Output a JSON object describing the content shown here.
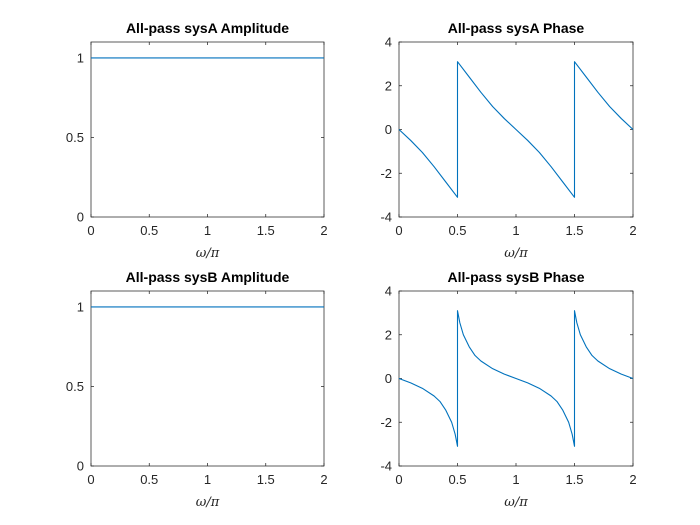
{
  "figure": {
    "line_color": "#0072bd",
    "axis_color": "#262626"
  },
  "chart_data": [
    {
      "type": "line",
      "title": "All-pass sysA Amplitude",
      "xlabel": "ω/π",
      "ylabel": "",
      "xlim": [
        0,
        2
      ],
      "ylim": [
        0,
        1.1
      ],
      "xticks": [
        0,
        0.5,
        1,
        1.5,
        2
      ],
      "xtick_labels": [
        "0",
        "0.5",
        "1",
        "1.5",
        "2"
      ],
      "yticks": [
        0,
        0.5,
        1
      ],
      "ytick_labels": [
        "0",
        "0.5",
        "1"
      ],
      "grid": false,
      "series": [
        {
          "x": [
            0,
            0.5,
            1,
            1.5,
            2
          ],
          "y": [
            1,
            1,
            1,
            1,
            1
          ]
        }
      ]
    },
    {
      "type": "line",
      "title": "All-pass sysA Phase",
      "xlabel": "ω/π",
      "ylabel": "",
      "xlim": [
        0,
        2
      ],
      "ylim": [
        -4,
        4
      ],
      "xticks": [
        0,
        0.5,
        1,
        1.5,
        2
      ],
      "xtick_labels": [
        "0",
        "0.5",
        "1",
        "1.5",
        "2"
      ],
      "yticks": [
        -4,
        -2,
        0,
        2,
        4
      ],
      "ytick_labels": [
        "-4",
        "-2",
        "0",
        "2",
        "4"
      ],
      "grid": false,
      "series": [
        {
          "x": [
            0,
            0.1,
            0.2,
            0.3,
            0.4,
            0.5,
            0.5,
            0.6,
            0.7,
            0.8,
            0.9,
            1.0,
            1.1,
            1.2,
            1.3,
            1.4,
            1.5,
            1.5,
            1.6,
            1.7,
            1.8,
            1.9,
            2.0
          ],
          "y": [
            0,
            -0.5,
            -1.05,
            -1.7,
            -2.4,
            -3.1,
            3.1,
            2.4,
            1.7,
            1.05,
            0.5,
            0,
            -0.5,
            -1.05,
            -1.7,
            -2.4,
            -3.1,
            3.1,
            2.4,
            1.7,
            1.05,
            0.5,
            0
          ]
        }
      ]
    },
    {
      "type": "line",
      "title": "All-pass sysB Amplitude",
      "xlabel": "ω/π",
      "ylabel": "",
      "xlim": [
        0,
        2
      ],
      "ylim": [
        0,
        1.1
      ],
      "xticks": [
        0,
        0.5,
        1,
        1.5,
        2
      ],
      "xtick_labels": [
        "0",
        "0.5",
        "1",
        "1.5",
        "2"
      ],
      "yticks": [
        0,
        0.5,
        1
      ],
      "ytick_labels": [
        "0",
        "0.5",
        "1"
      ],
      "grid": false,
      "series": [
        {
          "x": [
            0,
            0.5,
            1,
            1.5,
            2
          ],
          "y": [
            1,
            1,
            1,
            1,
            1
          ]
        }
      ]
    },
    {
      "type": "line",
      "title": "All-pass sysB Phase",
      "xlabel": "ω/π",
      "ylabel": "",
      "xlim": [
        0,
        2
      ],
      "ylim": [
        -4,
        4
      ],
      "xticks": [
        0,
        0.5,
        1,
        1.5,
        2
      ],
      "xtick_labels": [
        "0",
        "0.5",
        "1",
        "1.5",
        "2"
      ],
      "yticks": [
        -4,
        -2,
        0,
        2,
        4
      ],
      "ytick_labels": [
        "-4",
        "-2",
        "0",
        "2",
        "4"
      ],
      "grid": false,
      "series": [
        {
          "x": [
            0,
            0.1,
            0.2,
            0.3,
            0.35,
            0.4,
            0.45,
            0.48,
            0.5,
            0.5,
            0.52,
            0.55,
            0.6,
            0.65,
            0.7,
            0.8,
            0.9,
            1.0,
            1.1,
            1.2,
            1.3,
            1.35,
            1.4,
            1.45,
            1.48,
            1.5,
            1.5,
            1.52,
            1.55,
            1.6,
            1.65,
            1.7,
            1.8,
            1.9,
            2.0
          ],
          "y": [
            0,
            -0.2,
            -0.45,
            -0.8,
            -1.05,
            -1.45,
            -2.0,
            -2.55,
            -3.1,
            3.1,
            2.55,
            2.0,
            1.45,
            1.05,
            0.8,
            0.45,
            0.2,
            0,
            -0.2,
            -0.45,
            -0.8,
            -1.05,
            -1.45,
            -2.0,
            -2.55,
            -3.1,
            3.1,
            2.55,
            2.0,
            1.45,
            1.05,
            0.8,
            0.45,
            0.2,
            0
          ]
        }
      ]
    }
  ]
}
